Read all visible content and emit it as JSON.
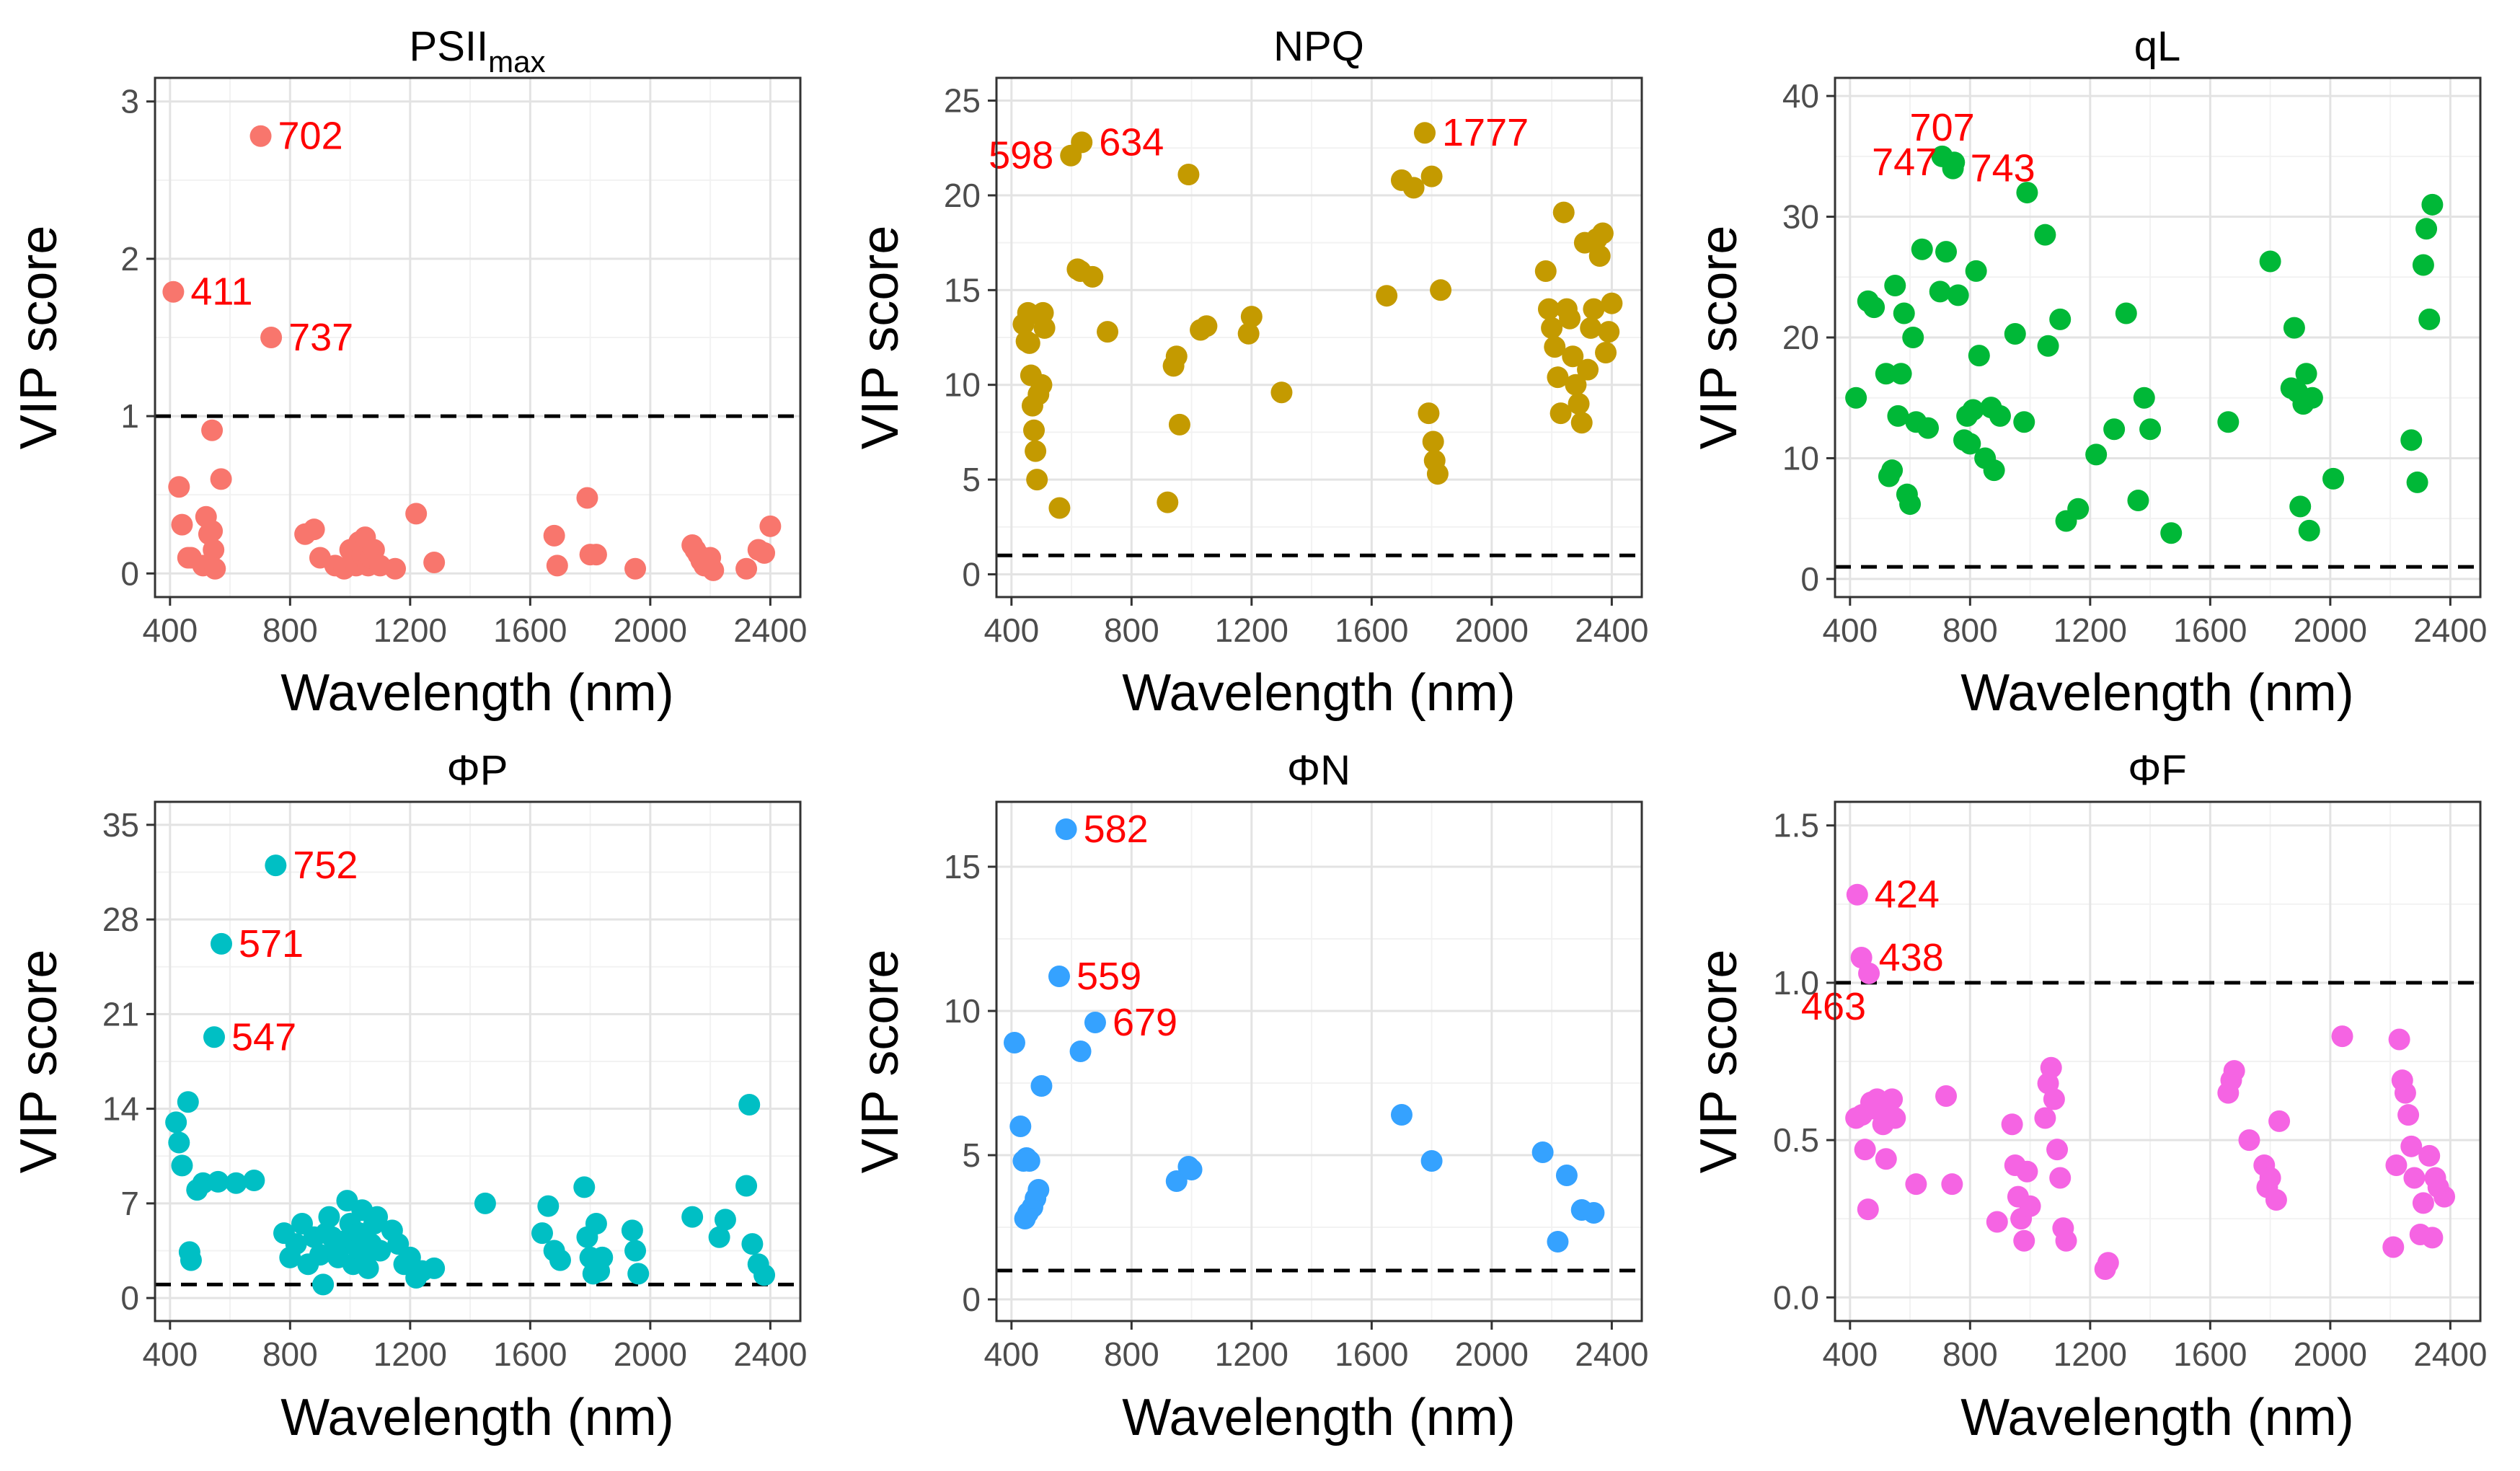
{
  "figure": {
    "xlabel": "Wavelength (nm)",
    "ylabel": "VIP score"
  },
  "chart_data": [
    {
      "type": "scatter",
      "title_main": "PSII",
      "title_sub": "max",
      "color": "#F8766D",
      "xlabel": "Wavelength (nm)",
      "ylabel": "VIP score",
      "xlim": [
        350,
        2500
      ],
      "ylim": [
        -0.15,
        3.15
      ],
      "xticks": [
        400,
        800,
        1200,
        1600,
        2000,
        2400
      ],
      "yticks": [
        0,
        1,
        2,
        3
      ],
      "threshold": 1,
      "x": [
        702,
        411,
        737,
        540,
        430,
        440,
        460,
        470,
        510,
        520,
        530,
        540,
        545,
        550,
        570,
        850,
        880,
        900,
        950,
        980,
        1000,
        1010,
        1020,
        1030,
        1040,
        1050,
        1060,
        1070,
        1080,
        1100,
        1150,
        1220,
        1280,
        1680,
        1690,
        1790,
        1800,
        1820,
        1950,
        2140,
        2150,
        2160,
        2170,
        2180,
        2200,
        2210,
        2320,
        2360,
        2380,
        2400
      ],
      "y": [
        2.78,
        1.79,
        1.5,
        0.91,
        0.55,
        0.31,
        0.1,
        0.1,
        0.05,
        0.36,
        0.25,
        0.27,
        0.15,
        0.03,
        0.6,
        0.25,
        0.28,
        0.1,
        0.05,
        0.03,
        0.15,
        0.1,
        0.05,
        0.2,
        0.12,
        0.23,
        0.05,
        0.1,
        0.15,
        0.05,
        0.03,
        0.38,
        0.07,
        0.24,
        0.05,
        0.48,
        0.12,
        0.12,
        0.03,
        0.18,
        0.15,
        0.12,
        0.08,
        0.05,
        0.1,
        0.02,
        0.03,
        0.15,
        0.13,
        0.3
      ],
      "labels": [
        {
          "x": 702,
          "y": 2.78,
          "text": "702"
        },
        {
          "x": 411,
          "y": 1.79,
          "text": "411"
        },
        {
          "x": 737,
          "y": 1.5,
          "text": "737"
        }
      ]
    },
    {
      "type": "scatter",
      "title_main": "NPQ",
      "color": "#C49A00",
      "xlabel": "Wavelength (nm)",
      "ylabel": "VIP score",
      "xlim": [
        350,
        2500
      ],
      "ylim": [
        -1.2,
        26.2
      ],
      "xticks": [
        400,
        800,
        1200,
        1600,
        2000,
        2400
      ],
      "yticks": [
        0,
        5,
        10,
        15,
        20,
        25
      ],
      "threshold": 1,
      "x": [
        598,
        634,
        1777,
        440,
        450,
        455,
        460,
        465,
        470,
        475,
        480,
        485,
        490,
        495,
        500,
        505,
        510,
        560,
        620,
        630,
        670,
        720,
        920,
        940,
        950,
        960,
        990,
        1030,
        1050,
        1190,
        1200,
        1300,
        1650,
        1700,
        1740,
        1790,
        1800,
        1805,
        1810,
        1820,
        1830,
        2180,
        2190,
        2200,
        2210,
        2220,
        2230,
        2240,
        2250,
        2260,
        2270,
        2280,
        2290,
        2300,
        2310,
        2320,
        2330,
        2340,
        2350,
        2360,
        2370,
        2380,
        2390,
        2400
      ],
      "y": [
        22.1,
        22.8,
        23.3,
        13.2,
        12.3,
        13.8,
        12.2,
        10.5,
        8.9,
        7.6,
        6.5,
        5.0,
        9.5,
        13.7,
        10.0,
        13.8,
        13.0,
        3.5,
        16.1,
        16.0,
        15.7,
        12.8,
        3.8,
        11.0,
        11.5,
        7.9,
        21.1,
        12.9,
        13.1,
        12.7,
        13.6,
        9.6,
        14.7,
        20.8,
        20.4,
        8.5,
        21.0,
        7.0,
        6.0,
        5.3,
        15.0,
        16.0,
        14.0,
        13.0,
        12.0,
        10.4,
        8.5,
        19.1,
        14.0,
        13.5,
        11.5,
        10.0,
        9.0,
        8.0,
        17.5,
        10.8,
        13.0,
        14.0,
        17.7,
        16.8,
        18.0,
        11.7,
        12.8,
        14.3
      ],
      "labels": [
        {
          "x": 598,
          "y": 22.1,
          "text": "598",
          "side": "left"
        },
        {
          "x": 634,
          "y": 22.8,
          "text": "634"
        },
        {
          "x": 1777,
          "y": 23.3,
          "text": "1777"
        }
      ]
    },
    {
      "type": "scatter",
      "title_main": "qL",
      "color": "#00B837",
      "xlabel": "Wavelength (nm)",
      "ylabel": "VIP score",
      "xlim": [
        350,
        2500
      ],
      "ylim": [
        -1.5,
        41.5
      ],
      "xticks": [
        400,
        800,
        1200,
        1600,
        2000,
        2400
      ],
      "yticks": [
        0,
        10,
        20,
        30,
        40
      ],
      "threshold": 1,
      "x": [
        707,
        747,
        743,
        420,
        460,
        480,
        520,
        530,
        540,
        550,
        560,
        570,
        580,
        590,
        600,
        610,
        620,
        640,
        660,
        700,
        720,
        760,
        780,
        790,
        800,
        810,
        820,
        830,
        850,
        870,
        880,
        900,
        950,
        980,
        990,
        1050,
        1060,
        1100,
        1120,
        1160,
        1220,
        1280,
        1320,
        1360,
        1380,
        1400,
        1470,
        1660,
        1800,
        1870,
        1880,
        1890,
        1900,
        1910,
        1920,
        1930,
        1940,
        2010,
        2270,
        2290,
        2310,
        2320,
        2330,
        2340
      ],
      "y": [
        35.0,
        34.5,
        34.0,
        15.0,
        23.0,
        22.5,
        17.0,
        8.5,
        9.0,
        24.3,
        13.5,
        17.0,
        22.0,
        7.0,
        6.2,
        20.0,
        13.0,
        27.3,
        12.5,
        23.8,
        27.1,
        23.5,
        11.5,
        13.5,
        11.2,
        14.0,
        25.5,
        18.5,
        10.0,
        14.2,
        9.0,
        13.5,
        20.3,
        13.0,
        32.0,
        28.5,
        19.3,
        21.5,
        4.8,
        5.8,
        10.3,
        12.4,
        22.0,
        6.5,
        15.0,
        12.4,
        3.8,
        13.0,
        26.3,
        15.8,
        20.8,
        15.5,
        6.0,
        14.5,
        17.0,
        4.0,
        15.0,
        8.3,
        11.5,
        8.0,
        26.0,
        29.0,
        21.5,
        31.0
      ],
      "labels": [
        {
          "x": 707,
          "y": 35.0,
          "text": "707",
          "side": "above"
        },
        {
          "x": 747,
          "y": 34.5,
          "text": "747",
          "side": "left"
        },
        {
          "x": 743,
          "y": 34.0,
          "text": "743"
        }
      ]
    },
    {
      "type": "scatter",
      "title_main": "ΦP",
      "color": "#00BFC4",
      "xlabel": "Wavelength (nm)",
      "ylabel": "VIP score",
      "xlim": [
        350,
        2500
      ],
      "ylim": [
        -1.7,
        36.7
      ],
      "xticks": [
        400,
        800,
        1200,
        1600,
        2000,
        2400
      ],
      "yticks": [
        0,
        7,
        14,
        21,
        28,
        35
      ],
      "threshold": 1,
      "x": [
        752,
        571,
        547,
        420,
        430,
        440,
        460,
        465,
        470,
        490,
        510,
        560,
        620,
        680,
        780,
        800,
        820,
        840,
        860,
        880,
        900,
        910,
        920,
        930,
        940,
        950,
        960,
        980,
        990,
        1000,
        1010,
        1020,
        1030,
        1040,
        1050,
        1060,
        1070,
        1080,
        1090,
        1100,
        1140,
        1160,
        1180,
        1200,
        1220,
        1240,
        1280,
        1450,
        1640,
        1660,
        1680,
        1700,
        1780,
        1790,
        1800,
        1810,
        1820,
        1830,
        1840,
        1940,
        1950,
        1960,
        2140,
        2230,
        2250,
        2320,
        2330,
        2340,
        2360,
        2380
      ],
      "y": [
        32.0,
        26.2,
        19.3,
        13.0,
        11.5,
        9.8,
        14.5,
        3.4,
        2.8,
        8.0,
        8.5,
        8.6,
        8.5,
        8.7,
        4.8,
        3.0,
        4.0,
        5.5,
        2.5,
        4.5,
        3.2,
        1.0,
        4.8,
        6.0,
        4.5,
        3.5,
        3.0,
        4.2,
        7.2,
        5.5,
        2.5,
        3.8,
        4.8,
        6.5,
        3.0,
        2.2,
        4.0,
        5.5,
        6.0,
        3.5,
        5.0,
        4.0,
        2.5,
        3.0,
        1.5,
        2.0,
        2.2,
        7.0,
        4.8,
        6.8,
        3.5,
        2.8,
        8.2,
        4.5,
        3.0,
        1.8,
        5.5,
        2.0,
        3.0,
        5.0,
        3.5,
        1.8,
        6.0,
        4.5,
        5.8,
        8.3,
        14.3,
        4.0,
        2.5,
        1.7
      ],
      "labels": [
        {
          "x": 752,
          "y": 32.0,
          "text": "752"
        },
        {
          "x": 571,
          "y": 26.2,
          "text": "571"
        },
        {
          "x": 547,
          "y": 19.3,
          "text": "547"
        }
      ]
    },
    {
      "type": "scatter",
      "title_main": "ΦN",
      "color": "#35A2FF",
      "xlabel": "Wavelength (nm)",
      "ylabel": "VIP score",
      "xlim": [
        350,
        2500
      ],
      "ylim": [
        -0.75,
        17.25
      ],
      "xticks": [
        400,
        800,
        1200,
        1600,
        2000,
        2400
      ],
      "yticks": [
        0,
        5,
        10,
        15
      ],
      "threshold": 1,
      "x": [
        582,
        559,
        679,
        410,
        430,
        440,
        445,
        450,
        455,
        460,
        470,
        480,
        490,
        500,
        630,
        950,
        990,
        1000,
        1700,
        1800,
        2170,
        2220,
        2250,
        2300,
        2340
      ],
      "y": [
        16.3,
        11.2,
        9.6,
        8.9,
        6.0,
        4.8,
        2.8,
        4.9,
        3.0,
        4.8,
        3.2,
        3.5,
        3.8,
        7.4,
        8.6,
        4.1,
        4.6,
        4.5,
        6.4,
        4.8,
        5.1,
        2.0,
        4.3,
        3.1,
        3.0
      ],
      "labels": [
        {
          "x": 582,
          "y": 16.3,
          "text": "582"
        },
        {
          "x": 559,
          "y": 11.2,
          "text": "559"
        },
        {
          "x": 679,
          "y": 9.6,
          "text": "679"
        }
      ]
    },
    {
      "type": "scatter",
      "title_main": "ΦF",
      "color": "#F564E3",
      "xlabel": "Wavelength (nm)",
      "ylabel": "VIP score",
      "xlim": [
        350,
        2500
      ],
      "ylim": [
        -0.075,
        1.575
      ],
      "xticks": [
        400,
        800,
        1200,
        1600,
        2000,
        2400
      ],
      "yticks": [
        0.0,
        0.5,
        1.0,
        1.5
      ],
      "threshold": 1,
      "x": [
        424,
        438,
        463,
        420,
        440,
        450,
        460,
        470,
        480,
        490,
        500,
        510,
        520,
        540,
        550,
        620,
        720,
        740,
        890,
        940,
        950,
        960,
        970,
        980,
        990,
        1000,
        1050,
        1060,
        1070,
        1080,
        1090,
        1100,
        1110,
        1120,
        1250,
        1260,
        1660,
        1670,
        1680,
        1730,
        1780,
        1790,
        1800,
        1820,
        1830,
        2040,
        2210,
        2220,
        2230,
        2240,
        2250,
        2260,
        2270,
        2280,
        2300,
        2310,
        2330,
        2340,
        2350,
        2360,
        2380
      ],
      "y": [
        1.28,
        1.08,
        1.03,
        0.57,
        0.58,
        0.47,
        0.28,
        0.62,
        0.6,
        0.63,
        0.6,
        0.55,
        0.44,
        0.63,
        0.57,
        0.36,
        0.64,
        0.36,
        0.24,
        0.55,
        0.42,
        0.32,
        0.25,
        0.18,
        0.4,
        0.29,
        0.57,
        0.68,
        0.73,
        0.63,
        0.47,
        0.38,
        0.22,
        0.18,
        0.09,
        0.11,
        0.65,
        0.69,
        0.72,
        0.5,
        0.42,
        0.35,
        0.38,
        0.31,
        0.56,
        0.83,
        0.16,
        0.42,
        0.82,
        0.69,
        0.65,
        0.58,
        0.48,
        0.38,
        0.2,
        0.3,
        0.45,
        0.19,
        0.38,
        0.35,
        0.32
      ],
      "labels": [
        {
          "x": 424,
          "y": 1.28,
          "text": "424"
        },
        {
          "x": 438,
          "y": 1.08,
          "text": "438"
        },
        {
          "x": 463,
          "y": 1.03,
          "text": "463",
          "side": "below-left"
        }
      ]
    }
  ]
}
